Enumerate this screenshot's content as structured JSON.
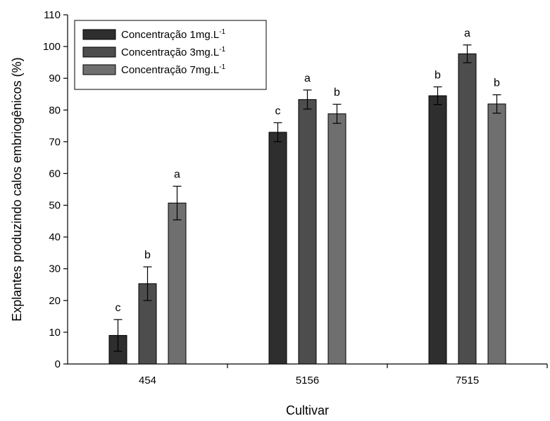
{
  "chart_data": {
    "type": "bar",
    "categories": [
      "454",
      "5156",
      "7515"
    ],
    "series": [
      {
        "name": "Concentração 1mg.L",
        "name_sup": "-1",
        "color": "#2e2e2e",
        "values": [
          9,
          73,
          84.5
        ],
        "errors": [
          5,
          3,
          2.8
        ],
        "letters": [
          "c",
          "c",
          "b"
        ]
      },
      {
        "name": "Concentração 3mg.L",
        "name_sup": "-1",
        "color": "#4d4d4d",
        "values": [
          25.3,
          83.3,
          97.7
        ],
        "errors": [
          5.3,
          3,
          2.8
        ],
        "letters": [
          "b",
          "a",
          "a"
        ]
      },
      {
        "name": "Concentração 7mg.L",
        "name_sup": "-1",
        "color": "#6f6f6f",
        "values": [
          50.7,
          78.8,
          81.9
        ],
        "errors": [
          5.3,
          3,
          2.9
        ],
        "letters": [
          "a",
          "b",
          "b"
        ]
      }
    ],
    "xlabel": "Cultivar",
    "ylabel": "Explantes produzindo calos embriogênicos (%)",
    "ylim": [
      0,
      110
    ],
    "yticks": [
      0,
      10,
      20,
      30,
      40,
      50,
      60,
      70,
      80,
      90,
      100,
      110
    ],
    "legend_position": "top-left",
    "grid": false
  }
}
